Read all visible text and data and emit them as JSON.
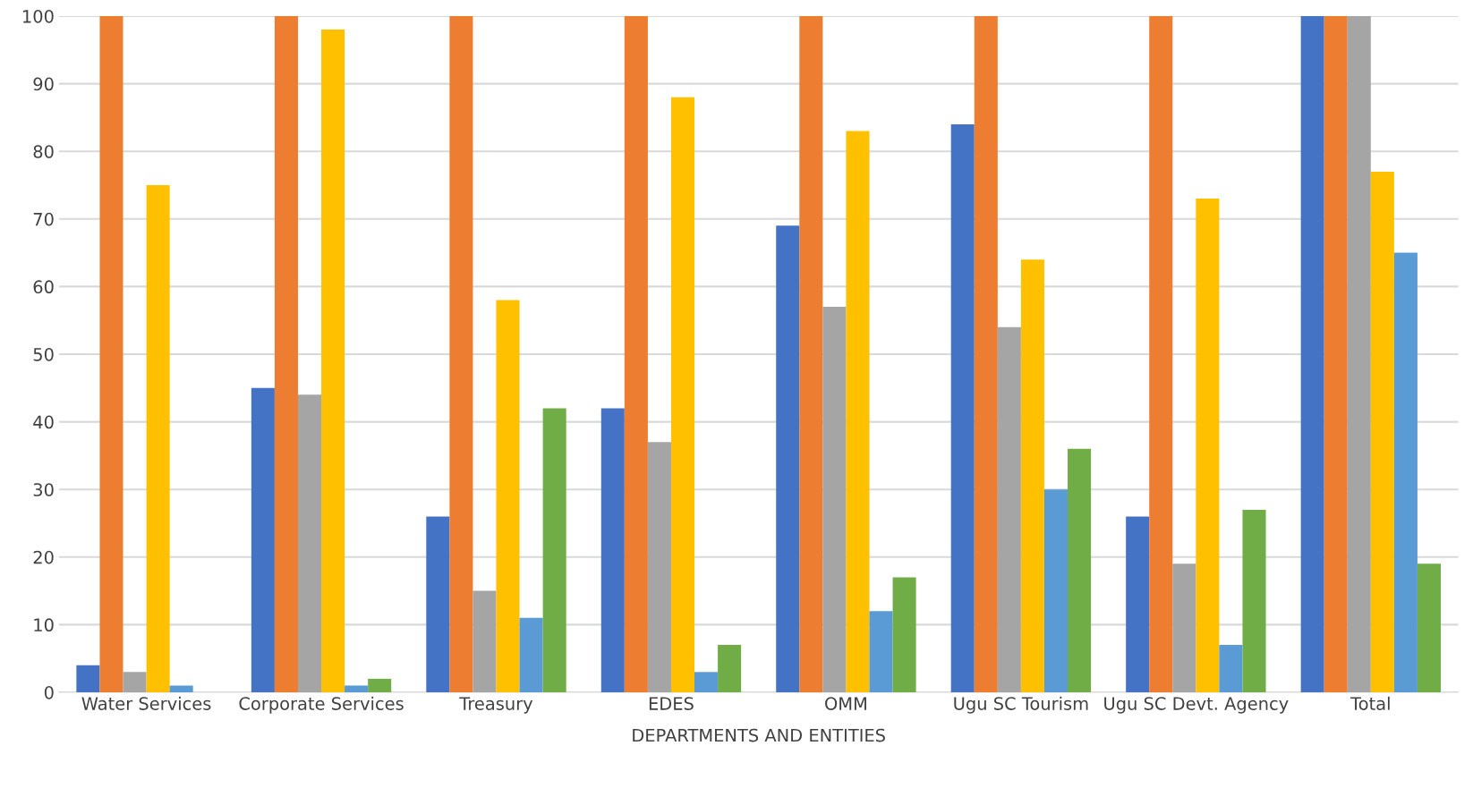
{
  "chart_data": {
    "type": "bar",
    "xlabel": "DEPARTMENTS AND ENTITIES",
    "categories": [
      "Water Services",
      "Corporate Services",
      "Treasury",
      "EDES",
      "OMM",
      "Ugu SC Tourism",
      "Ugu SC Devt. Agency",
      "Total"
    ],
    "series": [
      {
        "color": "#4472c4",
        "values": [
          4,
          45,
          26,
          42,
          69,
          84,
          26,
          100
        ]
      },
      {
        "color": "#ed7d31",
        "values": [
          100,
          100,
          100,
          100,
          100,
          100,
          100,
          100
        ]
      },
      {
        "color": "#a5a5a5",
        "values": [
          3,
          44,
          15,
          37,
          57,
          54,
          19,
          100
        ]
      },
      {
        "color": "#ffc000",
        "values": [
          75,
          98,
          58,
          88,
          83,
          64,
          73,
          77
        ]
      },
      {
        "color": "#5b9bd5",
        "values": [
          1,
          1,
          11,
          3,
          12,
          30,
          7,
          65
        ]
      },
      {
        "color": "#70ad47",
        "values": [
          0,
          2,
          42,
          7,
          17,
          36,
          27,
          19
        ]
      }
    ],
    "ylim": [
      0,
      100
    ],
    "yticks": [
      0,
      10,
      20,
      30,
      40,
      50,
      60,
      70,
      80,
      90,
      100
    ],
    "grid": "y",
    "legend": false
  }
}
